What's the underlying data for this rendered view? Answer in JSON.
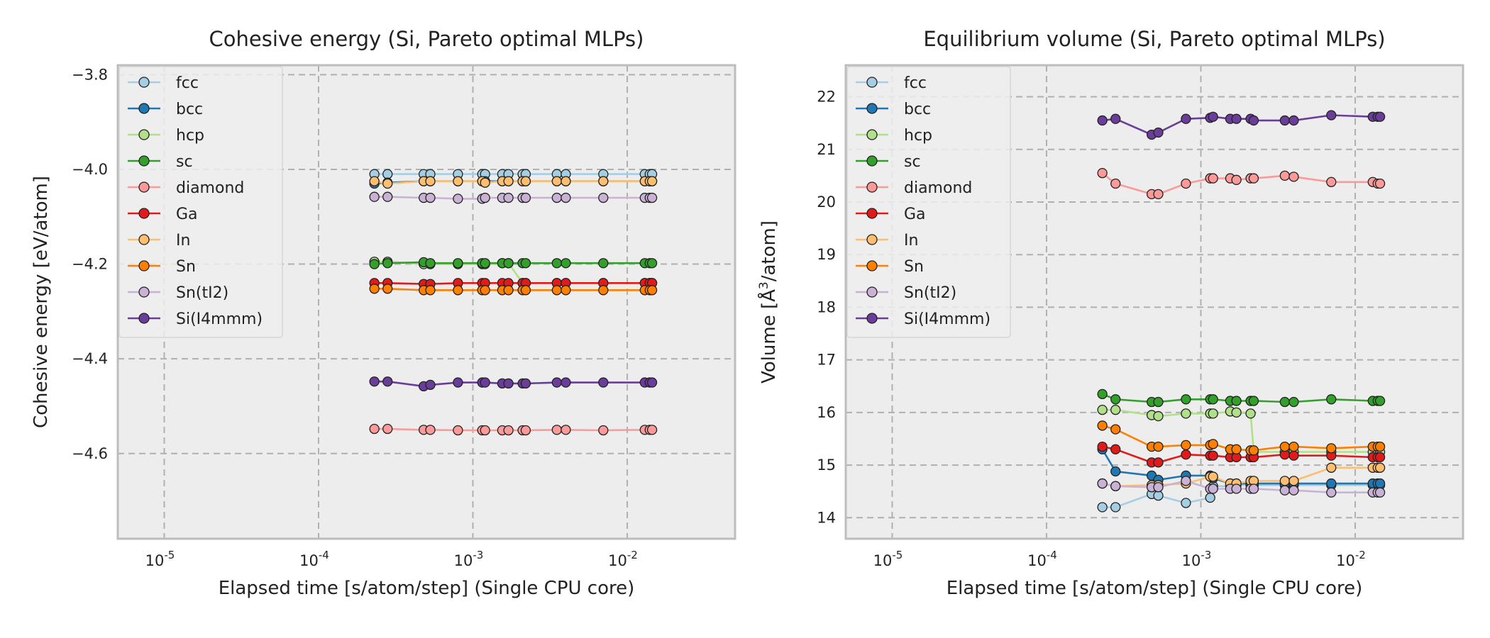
{
  "chart_data": [
    {
      "type": "line",
      "title": "Cohesive energy (Si, Pareto optimal MLPs)",
      "xlabel": "Elapsed time [s/atom/step] (Single CPU core)",
      "ylabel": "Cohesive energy [eV/atom]",
      "xscale": "log",
      "xlim": [
        5e-06,
        0.05
      ],
      "ylim": [
        -4.78,
        -3.78
      ],
      "yticks": [
        -3.8,
        -4.0,
        -4.2,
        -4.4,
        -4.6
      ],
      "ytick_labels": [
        "−3.8",
        "−4.0",
        "−4.2",
        "−4.4",
        "−4.6"
      ],
      "xtick_labels": [
        {
          "base": "10",
          "exp": "-5",
          "value": 1e-05
        },
        {
          "base": "10",
          "exp": "-4",
          "value": 0.0001
        },
        {
          "base": "10",
          "exp": "-3",
          "value": 0.001
        },
        {
          "base": "10",
          "exp": "-2",
          "value": 0.01
        }
      ],
      "grid": true,
      "legend": "upper-left",
      "x": [
        0.00023,
        0.00028,
        0.00048,
        0.00053,
        0.0008,
        0.00115,
        0.0012,
        0.00155,
        0.0017,
        0.0021,
        0.0022,
        0.0035,
        0.004,
        0.007,
        0.013,
        0.014,
        0.0145
      ],
      "series": [
        {
          "name": "fcc",
          "color": "#a6cee3",
          "values": [
            -4.01,
            -4.01,
            -4.01,
            -4.01,
            -4.01,
            -4.01,
            -4.01,
            -4.01,
            -4.01,
            -4.01,
            -4.01,
            -4.01,
            -4.01,
            -4.01,
            -4.01,
            -4.01,
            -4.01
          ]
        },
        {
          "name": "bcc",
          "color": "#1f78b4",
          "values": [
            -4.03,
            -4.028,
            -4.025,
            -4.025,
            -4.025,
            -4.025,
            -4.025,
            -4.025,
            -4.025,
            -4.025,
            -4.025,
            -4.025,
            -4.025,
            -4.025,
            -4.025,
            -4.025,
            -4.025
          ]
        },
        {
          "name": "hcp",
          "color": "#b2df8a",
          "values": [
            -4.195,
            -4.195,
            -4.2,
            -4.2,
            -4.2,
            -4.2,
            -4.2,
            -4.198,
            -4.198,
            -4.24,
            -4.24,
            -4.24,
            -4.24,
            -4.24,
            -4.24,
            -4.24,
            -4.24
          ]
        },
        {
          "name": "sc",
          "color": "#33a02c",
          "values": [
            -4.2,
            -4.198,
            -4.196,
            -4.198,
            -4.198,
            -4.198,
            -4.198,
            -4.198,
            -4.198,
            -4.198,
            -4.198,
            -4.198,
            -4.198,
            -4.198,
            -4.198,
            -4.198,
            -4.198
          ]
        },
        {
          "name": "diamond",
          "color": "#fb9a99",
          "values": [
            -4.548,
            -4.548,
            -4.55,
            -4.55,
            -4.551,
            -4.551,
            -4.551,
            -4.551,
            -4.551,
            -4.551,
            -4.551,
            -4.55,
            -4.55,
            -4.551,
            -4.55,
            -4.55,
            -4.55
          ]
        },
        {
          "name": "Ga",
          "color": "#e31a1c",
          "values": [
            -4.24,
            -4.24,
            -4.242,
            -4.242,
            -4.24,
            -4.24,
            -4.24,
            -4.24,
            -4.24,
            -4.24,
            -4.24,
            -4.24,
            -4.24,
            -4.24,
            -4.24,
            -4.24,
            -4.24
          ]
        },
        {
          "name": "In",
          "color": "#fdbf6f",
          "values": [
            -4.025,
            -4.03,
            -4.025,
            -4.025,
            -4.025,
            -4.025,
            -4.028,
            -4.025,
            -4.025,
            -4.025,
            -4.025,
            -4.025,
            -4.025,
            -4.025,
            -4.025,
            -4.025,
            -4.025
          ]
        },
        {
          "name": "Sn",
          "color": "#ff7f00",
          "values": [
            -4.252,
            -4.252,
            -4.255,
            -4.255,
            -4.255,
            -4.255,
            -4.255,
            -4.255,
            -4.255,
            -4.255,
            -4.255,
            -4.255,
            -4.255,
            -4.255,
            -4.255,
            -4.255,
            -4.255
          ]
        },
        {
          "name": "Sn(tI2)",
          "color": "#cab2d6",
          "values": [
            -4.058,
            -4.058,
            -4.06,
            -4.06,
            -4.062,
            -4.062,
            -4.06,
            -4.06,
            -4.06,
            -4.06,
            -4.06,
            -4.06,
            -4.06,
            -4.06,
            -4.06,
            -4.06,
            -4.06
          ]
        },
        {
          "name": "Si(I4mmm)",
          "color": "#6a3d9a",
          "values": [
            -4.448,
            -4.448,
            -4.458,
            -4.455,
            -4.45,
            -4.45,
            -4.45,
            -4.452,
            -4.452,
            -4.452,
            -4.452,
            -4.45,
            -4.45,
            -4.45,
            -4.45,
            -4.45,
            -4.45
          ]
        }
      ]
    },
    {
      "type": "line",
      "title": "Equilibrium volume (Si, Pareto optimal MLPs)",
      "xlabel": "Elapsed time [s/atom/step] (Single CPU core)",
      "ylabel_prefix": "Volume [",
      "ylabel_unit": "Å",
      "ylabel_sup": "3",
      "ylabel_suffix": "/atom]",
      "xscale": "log",
      "xlim": [
        5e-06,
        0.05
      ],
      "ylim": [
        13.6,
        22.6
      ],
      "yticks": [
        14,
        15,
        16,
        17,
        18,
        19,
        20,
        21,
        22
      ],
      "ytick_labels": [
        "14",
        "15",
        "16",
        "17",
        "18",
        "19",
        "20",
        "21",
        "22"
      ],
      "xtick_labels": [
        {
          "base": "10",
          "exp": "-5",
          "value": 1e-05
        },
        {
          "base": "10",
          "exp": "-4",
          "value": 0.0001
        },
        {
          "base": "10",
          "exp": "-3",
          "value": 0.001
        },
        {
          "base": "10",
          "exp": "-2",
          "value": 0.01
        }
      ],
      "grid": true,
      "legend": "upper-left",
      "x": [
        0.00023,
        0.00028,
        0.00048,
        0.00053,
        0.0008,
        0.00115,
        0.0012,
        0.00155,
        0.0017,
        0.0021,
        0.0022,
        0.0035,
        0.004,
        0.007,
        0.013,
        0.014,
        0.0145
      ],
      "series": [
        {
          "name": "fcc",
          "color": "#a6cee3",
          "values": [
            14.2,
            14.2,
            14.45,
            14.42,
            14.28,
            14.38,
            14.6,
            14.6,
            14.62,
            14.62,
            14.62,
            14.62,
            14.62,
            14.62,
            14.62,
            14.62,
            14.62
          ]
        },
        {
          "name": "bcc",
          "color": "#1f78b4",
          "values": [
            15.3,
            14.88,
            14.8,
            14.72,
            14.8,
            14.8,
            14.75,
            14.65,
            14.65,
            14.65,
            14.65,
            14.65,
            14.65,
            14.65,
            14.65,
            14.65,
            14.65
          ]
        },
        {
          "name": "hcp",
          "color": "#b2df8a",
          "values": [
            16.05,
            16.05,
            15.95,
            15.93,
            15.98,
            15.98,
            15.98,
            16.02,
            16.0,
            15.98,
            15.25,
            15.25,
            15.25,
            15.25,
            15.25,
            15.25,
            15.25
          ]
        },
        {
          "name": "sc",
          "color": "#33a02c",
          "values": [
            16.35,
            16.25,
            16.2,
            16.2,
            16.25,
            16.25,
            16.25,
            16.22,
            16.22,
            16.22,
            16.22,
            16.2,
            16.2,
            16.25,
            16.22,
            16.22,
            16.22
          ]
        },
        {
          "name": "diamond",
          "color": "#fb9a99",
          "values": [
            20.55,
            20.35,
            20.15,
            20.15,
            20.35,
            20.45,
            20.45,
            20.45,
            20.42,
            20.45,
            20.45,
            20.5,
            20.48,
            20.38,
            20.38,
            20.35,
            20.35
          ]
        },
        {
          "name": "Ga",
          "color": "#e31a1c",
          "values": [
            15.35,
            15.3,
            15.05,
            15.05,
            15.2,
            15.18,
            15.18,
            15.15,
            15.15,
            15.15,
            15.15,
            15.2,
            15.18,
            15.18,
            15.15,
            15.15,
            15.15
          ]
        },
        {
          "name": "In",
          "color": "#fdbf6f",
          "values": [
            14.65,
            14.6,
            14.62,
            14.62,
            14.65,
            14.78,
            14.78,
            14.65,
            14.65,
            14.7,
            14.7,
            14.7,
            14.7,
            14.95,
            14.95,
            14.95,
            14.95
          ]
        },
        {
          "name": "Sn",
          "color": "#ff7f00",
          "values": [
            15.75,
            15.68,
            15.35,
            15.35,
            15.38,
            15.38,
            15.4,
            15.3,
            15.3,
            15.28,
            15.28,
            15.35,
            15.35,
            15.32,
            15.35,
            15.35,
            15.35
          ]
        },
        {
          "name": "Sn(tI2)",
          "color": "#cab2d6",
          "values": [
            14.65,
            14.6,
            14.58,
            14.58,
            14.7,
            14.55,
            14.55,
            14.55,
            14.55,
            14.55,
            14.55,
            14.52,
            14.52,
            14.48,
            14.48,
            14.48,
            14.48
          ]
        },
        {
          "name": "Si(I4mmm)",
          "color": "#6a3d9a",
          "values": [
            21.55,
            21.58,
            21.28,
            21.32,
            21.58,
            21.6,
            21.62,
            21.58,
            21.58,
            21.58,
            21.55,
            21.55,
            21.55,
            21.65,
            21.62,
            21.62,
            21.62
          ]
        }
      ]
    }
  ]
}
